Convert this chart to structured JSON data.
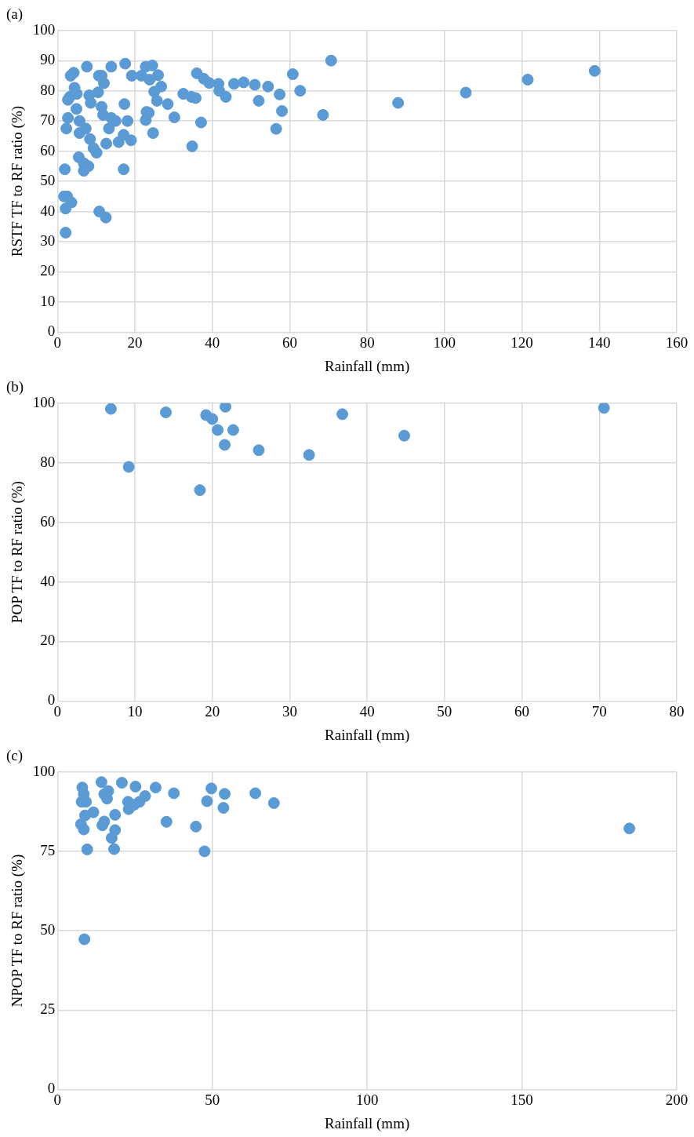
{
  "chart_data": [
    {
      "type": "scatter",
      "title": "(a)",
      "xlabel": "Rainfall (mm)",
      "ylabel": "RSTF TF to RF ratio (%)",
      "xlim": [
        0,
        160
      ],
      "xticks": [
        0,
        20,
        40,
        60,
        80,
        100,
        120,
        140,
        160
      ],
      "ylim": [
        0,
        100
      ],
      "yticks": [
        0,
        10,
        20,
        30,
        40,
        50,
        60,
        70,
        80,
        90,
        100
      ],
      "grid": true,
      "marker": "circle",
      "series": [
        {
          "color": "#5b9bd5",
          "x": [
            2.1,
            2.1,
            2.5,
            1.7,
            3.6,
            1.9,
            10.8,
            12.5,
            2.3,
            2.7,
            2.7,
            3.2,
            3.4,
            4.2,
            4.4,
            5,
            4.9,
            5.7,
            5.7,
            5.5,
            6.8,
            6.8,
            8,
            7.6,
            8.2,
            7.3,
            8.4,
            9.3,
            10.1,
            8.6,
            10.5,
            10.7,
            11.4,
            12,
            11.4,
            11.8,
            13.3,
            12.6,
            13.9,
            13.9,
            15.8,
            15,
            17.1,
            17.1,
            17.3,
            17.5,
            19.2,
            19,
            18.1,
            21.7,
            22.8,
            23,
            22.8,
            23.6,
            23.8,
            24.5,
            24.7,
            25,
            26,
            25.7,
            26.8,
            28.5,
            30.2,
            32.5,
            34.6,
            34.8,
            35.7,
            36,
            37.1,
            37.8,
            39.2,
            41.6,
            41.8,
            43.5,
            45.6,
            48.1,
            51,
            52,
            54.4,
            56.5,
            57.4,
            58,
            60.8,
            62.7,
            68.6,
            70.7,
            88,
            105.5,
            121.5,
            138.8
          ],
          "values": [
            33,
            41,
            45,
            45,
            43,
            54,
            40,
            38,
            67.5,
            71,
            77,
            78,
            85,
            86,
            81,
            79,
            74,
            70,
            66,
            58,
            56,
            53.5,
            55,
            88,
            78.5,
            67.5,
            64,
            61,
            59.5,
            76,
            79.5,
            85,
            85,
            82.5,
            74.7,
            72,
            67.5,
            62.5,
            71,
            88,
            63,
            70,
            65.4,
            54,
            75.6,
            89,
            85,
            63.6,
            70,
            85,
            88,
            73,
            70.3,
            72.7,
            83.7,
            88.4,
            66,
            79.7,
            85.2,
            76.7,
            81.4,
            75.6,
            71.2,
            79,
            78,
            61.6,
            77.6,
            85.8,
            69.5,
            84,
            82.6,
            82.3,
            80,
            78,
            82.3,
            82.8,
            82,
            76.7,
            81.4,
            67.4,
            78.8,
            73.3,
            85.5,
            80,
            72,
            90,
            76,
            79.4,
            83.7,
            86.6
          ]
        }
      ]
    },
    {
      "type": "scatter",
      "title": "(b)",
      "xlabel": "Rainfall (mm)",
      "ylabel": "POP TF to RF ratio (%)",
      "xlim": [
        0,
        80
      ],
      "xticks": [
        0,
        10,
        20,
        30,
        40,
        50,
        60,
        70,
        80
      ],
      "ylim": [
        0,
        100
      ],
      "yticks": [
        0,
        20,
        40,
        60,
        80,
        100
      ],
      "grid": true,
      "marker": "circle",
      "series": [
        {
          "color": "#5b9bd5",
          "x": [
            6.9,
            14,
            19.2,
            20,
            21.7,
            20.7,
            22.7,
            21.6,
            26,
            32.5,
            36.8,
            44.8,
            9.2,
            18.4,
            70.6
          ],
          "values": [
            98.1,
            96.9,
            96,
            94.7,
            98.8,
            91,
            91,
            86,
            84.2,
            82.6,
            96.3,
            89.1,
            78.6,
            70.8,
            98.4
          ]
        }
      ]
    },
    {
      "type": "scatter",
      "title": "(c)",
      "xlabel": "Rainfall (mm)",
      "ylabel": "NPOP TF to RF ratio (%)",
      "xlim": [
        0,
        200
      ],
      "xticks": [
        0,
        50,
        100,
        150,
        200
      ],
      "ylim": [
        0,
        100
      ],
      "yticks": [
        0,
        25,
        50,
        75,
        100
      ],
      "grid": true,
      "marker": "circle",
      "series": [
        {
          "color": "#5b9bd5",
          "x": [
            8,
            8.5,
            7.8,
            9.2,
            8.9,
            11.6,
            7.6,
            8.5,
            9.6,
            14.2,
            15.1,
            16.4,
            16,
            20.8,
            25.2,
            22.8,
            23,
            24.8,
            26.5,
            28.3,
            31.7,
            37.6,
            18.6,
            15.1,
            14.5,
            18.6,
            17.5,
            18.3,
            35.2,
            44.7,
            47.5,
            49.7,
            48.3,
            54,
            53.6,
            63.9,
            69.9,
            8.7,
            184.7
          ],
          "values": [
            95.1,
            93,
            90.6,
            90.6,
            86.3,
            87.3,
            83.5,
            81.9,
            75.6,
            96.8,
            93,
            94,
            91.6,
            96.6,
            95.4,
            90.6,
            88.3,
            89.7,
            90.6,
            92.4,
            95.1,
            93.3,
            86.5,
            84.4,
            83.2,
            81.7,
            79.2,
            75.7,
            84.3,
            82.8,
            75,
            94.8,
            90.8,
            93.1,
            88.7,
            93.3,
            90.2,
            47.3,
            82.2
          ]
        }
      ]
    }
  ]
}
